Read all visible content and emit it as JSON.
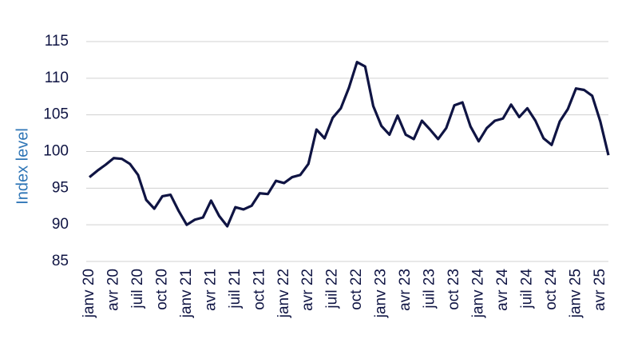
{
  "chart_data": {
    "type": "line",
    "y_label": "Index level",
    "categories": [
      "janv 20",
      null,
      null,
      "avr 20",
      null,
      null,
      "juil 20",
      null,
      null,
      "oct 20",
      null,
      null,
      "janv 21",
      null,
      null,
      "avr 21",
      null,
      null,
      "juil 21",
      null,
      null,
      "oct 21",
      null,
      null,
      "janv 22",
      null,
      null,
      "avr 22",
      null,
      null,
      "juil 22",
      null,
      null,
      "oct 22",
      null,
      null,
      "janv 23",
      null,
      null,
      "avr 23",
      null,
      null,
      "juil 23",
      null,
      null,
      "oct 23",
      null,
      null,
      "janv 24",
      null,
      null,
      "avr 24",
      null,
      null,
      "juil 24",
      null,
      null,
      "oct 24",
      null,
      null,
      "janv 25",
      null,
      null,
      "avr 25",
      null
    ],
    "series": [
      {
        "color": "#0f1443",
        "values": [
          96.5,
          97.4,
          98.2,
          99.1,
          99.0,
          98.3,
          96.8,
          93.4,
          92.2,
          93.9,
          94.1,
          91.9,
          90.0,
          90.7,
          91.0,
          93.3,
          91.2,
          89.8,
          92.4,
          92.1,
          92.6,
          94.3,
          94.2,
          96.0,
          95.7,
          96.5,
          96.8,
          98.3,
          103.0,
          101.8,
          104.6,
          105.9,
          108.7,
          112.2,
          111.6,
          106.2,
          103.5,
          102.3,
          104.9,
          102.3,
          101.7,
          104.2,
          103.0,
          101.7,
          103.2,
          106.3,
          106.7,
          103.4,
          101.4,
          103.2,
          104.2,
          104.5,
          106.4,
          104.7,
          105.9,
          104.2,
          101.8,
          100.9,
          104.1,
          105.8,
          108.6,
          108.4,
          107.6,
          104.1,
          99.5
        ]
      }
    ],
    "ylim": [
      85,
      115
    ],
    "yticks": [
      85,
      90,
      95,
      100,
      105,
      110,
      115
    ],
    "grid": true
  }
}
